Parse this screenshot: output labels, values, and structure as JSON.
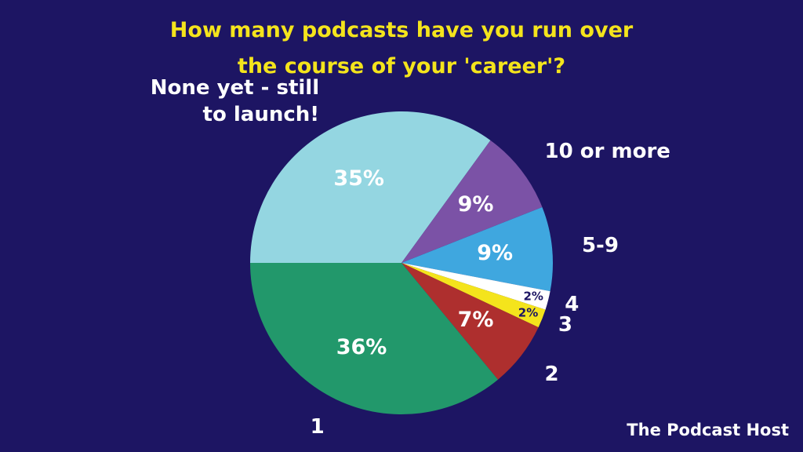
{
  "chart_data": {
    "type": "pie",
    "title": "How many podcasts have you run over the course of your 'career'?",
    "categories": [
      "None yet - still to launch!",
      "10 or more",
      "5-9",
      "4",
      "3",
      "2",
      "1"
    ],
    "values": [
      35,
      9,
      9,
      2,
      2,
      7,
      36
    ],
    "value_labels": [
      "35%",
      "9%",
      "9%",
      "2%",
      "2%",
      "7%",
      "36%"
    ],
    "colors": [
      "#94d6e1",
      "#7b52a6",
      "#3fa7df",
      "#ffffff",
      "#f4e41c",
      "#ae2f2e",
      "#22986b"
    ],
    "source": "The Podcast Host"
  }
}
